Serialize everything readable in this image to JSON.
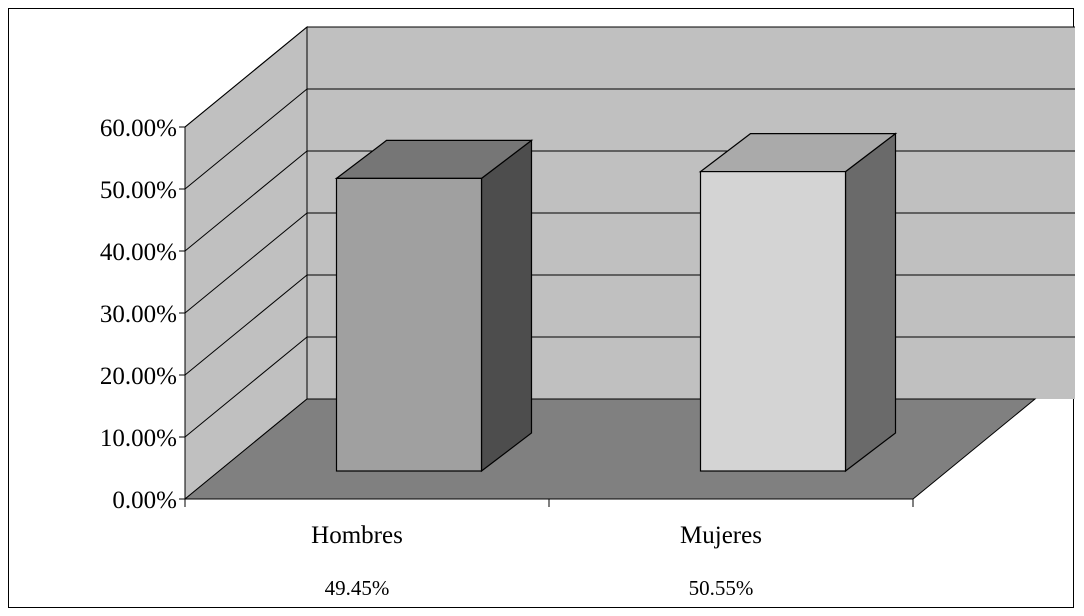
{
  "chart_data": {
    "type": "bar",
    "three_d": true,
    "categories": [
      "Hombres",
      "Mujeres"
    ],
    "values": [
      49.45,
      50.55
    ],
    "value_labels": [
      "49.45%",
      "50.55%"
    ],
    "ylim": [
      0,
      60
    ],
    "yticks": [
      0,
      10,
      20,
      30,
      40,
      50,
      60
    ],
    "ytick_labels": [
      "0.00%",
      "10.00%",
      "20.00%",
      "30.00%",
      "40.00%",
      "50.00%",
      "60.00%"
    ],
    "title": "",
    "xlabel": "",
    "ylabel": "",
    "grid": true,
    "legend": "none",
    "colors": {
      "wall": "#c0c0c0",
      "floor": "#808080",
      "bar_front": [
        "#a0a0a0",
        "#d4d4d4"
      ],
      "bar_top": [
        "#767676",
        "#aaaaaa"
      ],
      "bar_side": [
        "#4d4d4d",
        "#6a6a6a"
      ],
      "line": "#000000"
    }
  }
}
